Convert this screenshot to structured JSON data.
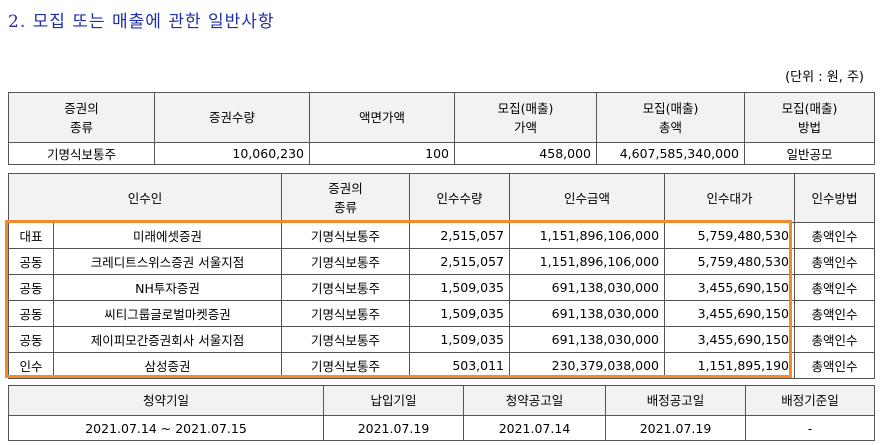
{
  "title": "2. 모집 또는 매출에 관한 일반사항",
  "unit": "(단위 : 원, 주)",
  "securities_table": {
    "headers": [
      "증권의\n종류",
      "증권수량",
      "액면가액",
      "모집(매출)\n가액",
      "모집(매출)\n총액",
      "모집(매출)\n방법"
    ],
    "row": [
      "기명식보통주",
      "10,060,230",
      "100",
      "458,000",
      "4,607,585,340,000",
      "일반공모"
    ]
  },
  "underwriters_table": {
    "headers": [
      "인수인",
      "증권의\n종류",
      "인수수량",
      "인수금액",
      "인수대가",
      "인수방법"
    ],
    "rows": [
      {
        "role": "대표",
        "name": "미래에셋증권",
        "type": "기명식보통주",
        "qty": "2,515,057",
        "amount": "1,151,896,106,000",
        "fee": "5,759,480,530",
        "method": "총액인수"
      },
      {
        "role": "공동",
        "name": "크레디트스위스증권 서울지점",
        "type": "기명식보통주",
        "qty": "2,515,057",
        "amount": "1,151,896,106,000",
        "fee": "5,759,480,530",
        "method": "총액인수"
      },
      {
        "role": "공동",
        "name": "NH투자증권",
        "type": "기명식보통주",
        "qty": "1,509,035",
        "amount": "691,138,030,000",
        "fee": "3,455,690,150",
        "method": "총액인수"
      },
      {
        "role": "공동",
        "name": "씨티그룹글로벌마켓증권",
        "type": "기명식보통주",
        "qty": "1,509,035",
        "amount": "691,138,030,000",
        "fee": "3,455,690,150",
        "method": "총액인수"
      },
      {
        "role": "공동",
        "name": "제이피모간증권회사 서울지점",
        "type": "기명식보통주",
        "qty": "1,509,035",
        "amount": "691,138,030,000",
        "fee": "3,455,690,150",
        "method": "총액인수"
      },
      {
        "role": "인수",
        "name": "삼성증권",
        "type": "기명식보통주",
        "qty": "503,011",
        "amount": "230,379,038,000",
        "fee": "1,151,895,190",
        "method": "총액인수"
      }
    ]
  },
  "schedule_table": {
    "headers": [
      "청약기일",
      "납입기일",
      "청약공고일",
      "배정공고일",
      "배정기준일"
    ],
    "row": [
      "2021.07.14 ~ 2021.07.15",
      "2021.07.19",
      "2021.07.14",
      "2021.07.19",
      "-"
    ]
  },
  "highlight_color": "#f28a2e",
  "title_color": "#1f2fa8"
}
